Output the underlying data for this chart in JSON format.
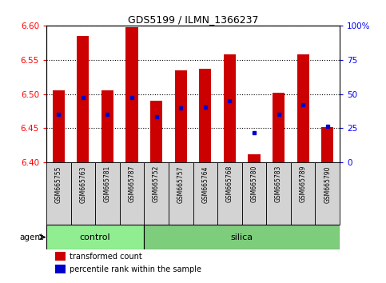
{
  "title": "GDS5199 / ILMN_1366237",
  "samples": [
    "GSM665755",
    "GSM665763",
    "GSM665781",
    "GSM665787",
    "GSM665752",
    "GSM665757",
    "GSM665764",
    "GSM665768",
    "GSM665780",
    "GSM665783",
    "GSM665789",
    "GSM665790"
  ],
  "groups": [
    "control",
    "control",
    "control",
    "control",
    "silica",
    "silica",
    "silica",
    "silica",
    "silica",
    "silica",
    "silica",
    "silica"
  ],
  "bar_tops": [
    6.505,
    6.585,
    6.505,
    6.598,
    6.49,
    6.535,
    6.537,
    6.558,
    6.412,
    6.502,
    6.558,
    6.452
  ],
  "bar_bottom": 6.4,
  "blue_y": [
    6.47,
    6.495,
    6.47,
    6.495,
    6.467,
    6.48,
    6.481,
    6.49,
    6.443,
    6.47,
    6.484,
    6.453
  ],
  "ylim": [
    6.4,
    6.6
  ],
  "yticks": [
    6.4,
    6.45,
    6.5,
    6.55,
    6.6
  ],
  "right_yticks": [
    0,
    25,
    50,
    75,
    100
  ],
  "bar_color": "#cc0000",
  "blue_color": "#0000cc",
  "control_color": "#90ee90",
  "silica_color": "#7dcd7d",
  "bg_color": "#d3d3d3",
  "agent_label": "agent",
  "control_label": "control",
  "silica_label": "silica",
  "legend_red": "transformed count",
  "legend_blue": "percentile rank within the sample",
  "n_control": 4,
  "n_silica": 8
}
